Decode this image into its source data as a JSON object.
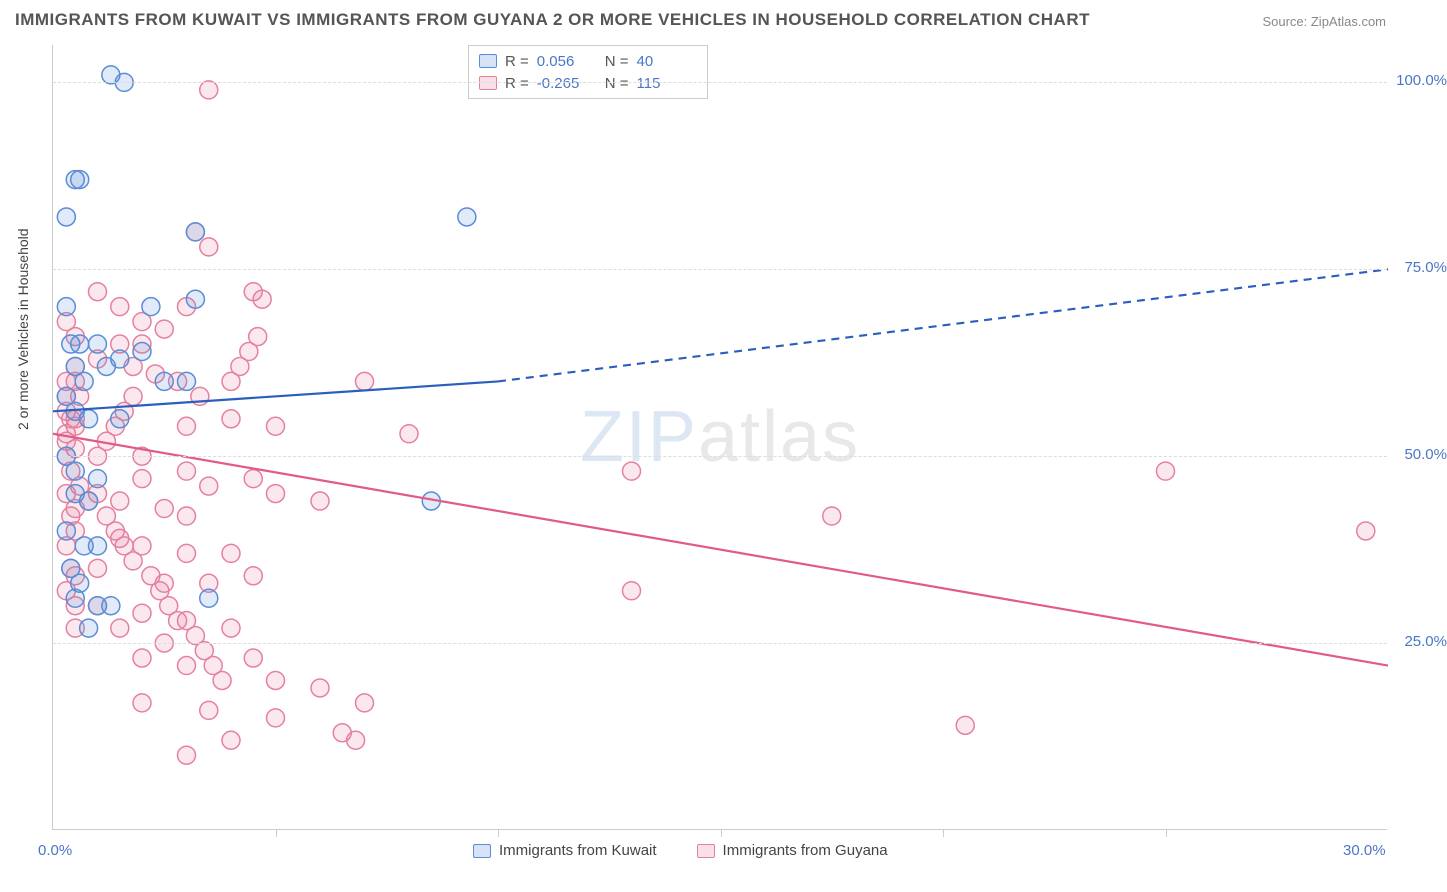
{
  "title": "IMMIGRANTS FROM KUWAIT VS IMMIGRANTS FROM GUYANA 2 OR MORE VEHICLES IN HOUSEHOLD CORRELATION CHART",
  "source": "Source: ZipAtlas.com",
  "ylabel": "2 or more Vehicles in Household",
  "watermark_a": "ZIP",
  "watermark_b": "atlas",
  "chart": {
    "type": "scatter",
    "xlim": [
      0,
      30
    ],
    "ylim": [
      0,
      105
    ],
    "y_ticks": [
      25,
      50,
      75,
      100
    ],
    "y_tick_labels": [
      "25.0%",
      "50.0%",
      "75.0%",
      "100.0%"
    ],
    "x_ticks": [
      0,
      30
    ],
    "x_tick_labels": [
      "0.0%",
      "30.0%"
    ],
    "x_minor_ticks": [
      5,
      10,
      15,
      20,
      25
    ],
    "grid_color": "#dddddd",
    "background_color": "#ffffff",
    "marker_radius": 9,
    "marker_stroke_width": 1.5,
    "marker_fill_opacity": 0.18,
    "line_width": 2.2,
    "series": [
      {
        "name": "Immigrants from Kuwait",
        "color": "#5b8dd6",
        "line_color": "#2a5fbd",
        "r_value": "0.056",
        "n_value": "40",
        "regression": {
          "x1": 0,
          "y1": 56,
          "x2": 10,
          "y2": 60,
          "dash_x2": 30,
          "dash_y2": 75
        },
        "points": [
          [
            1.3,
            101
          ],
          [
            1.6,
            100
          ],
          [
            0.3,
            82
          ],
          [
            0.5,
            87
          ],
          [
            0.6,
            87
          ],
          [
            3.2,
            80
          ],
          [
            0.4,
            65
          ],
          [
            0.6,
            65
          ],
          [
            1.0,
            65
          ],
          [
            0.5,
            62
          ],
          [
            0.7,
            60
          ],
          [
            1.2,
            62
          ],
          [
            1.5,
            63
          ],
          [
            2.0,
            64
          ],
          [
            2.2,
            70
          ],
          [
            3.2,
            71
          ],
          [
            2.5,
            60
          ],
          [
            3.0,
            60
          ],
          [
            0.3,
            58
          ],
          [
            0.5,
            56
          ],
          [
            0.8,
            55
          ],
          [
            1.5,
            55
          ],
          [
            0.3,
            50
          ],
          [
            0.5,
            48
          ],
          [
            1.0,
            47
          ],
          [
            0.5,
            45
          ],
          [
            0.8,
            44
          ],
          [
            0.3,
            40
          ],
          [
            0.7,
            38
          ],
          [
            1.0,
            38
          ],
          [
            0.4,
            35
          ],
          [
            0.6,
            33
          ],
          [
            0.5,
            31
          ],
          [
            1.0,
            30
          ],
          [
            1.3,
            30
          ],
          [
            3.5,
            31
          ],
          [
            0.8,
            27
          ],
          [
            8.5,
            44
          ],
          [
            9.3,
            82
          ],
          [
            0.3,
            70
          ]
        ]
      },
      {
        "name": "Immigrants from Guyana",
        "color": "#e6809f",
        "line_color": "#e05a8a",
        "r_value": "-0.265",
        "n_value": "115",
        "regression": {
          "x1": 0,
          "y1": 53,
          "x2": 30,
          "y2": 22
        },
        "points": [
          [
            3.5,
            99
          ],
          [
            3.2,
            80
          ],
          [
            3.5,
            78
          ],
          [
            4.5,
            72
          ],
          [
            4.7,
            71
          ],
          [
            3.0,
            70
          ],
          [
            2.0,
            68
          ],
          [
            2.5,
            67
          ],
          [
            1.5,
            65
          ],
          [
            1.0,
            63
          ],
          [
            0.5,
            62
          ],
          [
            0.3,
            60
          ],
          [
            0.6,
            58
          ],
          [
            0.3,
            58
          ],
          [
            0.3,
            56
          ],
          [
            0.5,
            55
          ],
          [
            0.5,
            54
          ],
          [
            0.3,
            53
          ],
          [
            0.3,
            52
          ],
          [
            0.5,
            51
          ],
          [
            3.0,
            54
          ],
          [
            4.0,
            55
          ],
          [
            5.0,
            54
          ],
          [
            7.0,
            60
          ],
          [
            8.0,
            53
          ],
          [
            2.0,
            50
          ],
          [
            3.0,
            48
          ],
          [
            2.0,
            47
          ],
          [
            3.5,
            46
          ],
          [
            4.5,
            47
          ],
          [
            1.0,
            45
          ],
          [
            1.5,
            44
          ],
          [
            0.5,
            43
          ],
          [
            2.5,
            43
          ],
          [
            3.0,
            42
          ],
          [
            5.0,
            45
          ],
          [
            6.0,
            44
          ],
          [
            13.0,
            48
          ],
          [
            17.5,
            42
          ],
          [
            25.0,
            48
          ],
          [
            29.5,
            40
          ],
          [
            0.5,
            40
          ],
          [
            1.5,
            39
          ],
          [
            2.0,
            38
          ],
          [
            3.0,
            37
          ],
          [
            4.0,
            37
          ],
          [
            1.0,
            35
          ],
          [
            0.5,
            34
          ],
          [
            2.5,
            33
          ],
          [
            3.5,
            33
          ],
          [
            4.5,
            34
          ],
          [
            13.0,
            32
          ],
          [
            1.0,
            30
          ],
          [
            2.0,
            29
          ],
          [
            3.0,
            28
          ],
          [
            0.5,
            27
          ],
          [
            1.5,
            27
          ],
          [
            2.5,
            25
          ],
          [
            4.0,
            27
          ],
          [
            2.0,
            23
          ],
          [
            3.0,
            22
          ],
          [
            4.5,
            23
          ],
          [
            5.0,
            20
          ],
          [
            6.0,
            19
          ],
          [
            7.0,
            17
          ],
          [
            2.0,
            17
          ],
          [
            3.5,
            16
          ],
          [
            5.0,
            15
          ],
          [
            6.5,
            13
          ],
          [
            6.8,
            12
          ],
          [
            3.0,
            10
          ],
          [
            4.0,
            12
          ],
          [
            20.5,
            14
          ],
          [
            1.0,
            72
          ],
          [
            1.5,
            70
          ],
          [
            2.0,
            65
          ],
          [
            0.3,
            68
          ],
          [
            0.5,
            66
          ],
          [
            1.8,
            62
          ],
          [
            2.3,
            61
          ],
          [
            2.8,
            60
          ],
          [
            3.3,
            58
          ],
          [
            0.4,
            48
          ],
          [
            0.6,
            46
          ],
          [
            0.8,
            44
          ],
          [
            1.2,
            42
          ],
          [
            1.4,
            40
          ],
          [
            1.6,
            38
          ],
          [
            1.8,
            36
          ],
          [
            2.2,
            34
          ],
          [
            2.4,
            32
          ],
          [
            2.6,
            30
          ],
          [
            2.8,
            28
          ],
          [
            3.2,
            26
          ],
          [
            3.4,
            24
          ],
          [
            3.6,
            22
          ],
          [
            3.8,
            20
          ],
          [
            1.0,
            50
          ],
          [
            1.2,
            52
          ],
          [
            1.4,
            54
          ],
          [
            1.6,
            56
          ],
          [
            1.8,
            58
          ],
          [
            4.0,
            60
          ],
          [
            4.2,
            62
          ],
          [
            4.4,
            64
          ],
          [
            4.6,
            66
          ],
          [
            0.3,
            45
          ],
          [
            0.4,
            42
          ],
          [
            0.3,
            38
          ],
          [
            0.4,
            35
          ],
          [
            0.5,
            30
          ],
          [
            0.3,
            32
          ],
          [
            0.4,
            55
          ],
          [
            0.3,
            50
          ],
          [
            0.5,
            60
          ]
        ]
      }
    ]
  },
  "legend_stat": {
    "r_label": "R =",
    "n_label": "N ="
  }
}
